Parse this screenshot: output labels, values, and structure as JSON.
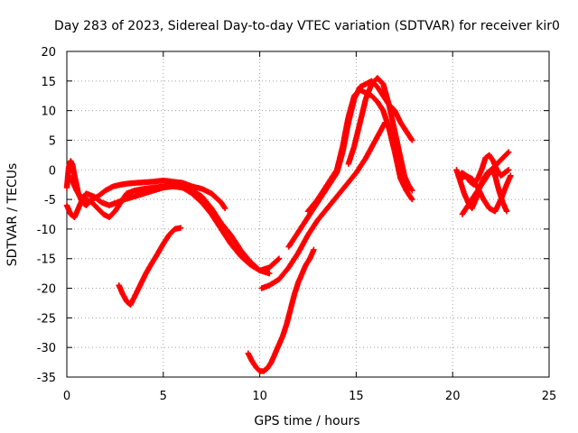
{
  "chart_data": {
    "type": "scatter",
    "title": "Day 283 of 2023, Sidereal Day-to-day VTEC variation (SDTVAR) for receiver kir0",
    "xlabel": "GPS time / hours",
    "ylabel": "SDTVAR / TECUs",
    "xlim": [
      0,
      25
    ],
    "ylim": [
      -35,
      20
    ],
    "xticks": [
      "0",
      "5",
      "10",
      "15",
      "20",
      "25"
    ],
    "xtick_values": [
      0,
      5,
      10,
      15,
      20,
      25
    ],
    "yticks": [
      "20",
      "15",
      "10",
      "5",
      "0",
      "-5",
      "-10",
      "-15",
      "-20",
      "-25",
      "-30",
      "-35"
    ],
    "ytick_values": [
      20,
      15,
      10,
      5,
      0,
      -5,
      -10,
      -15,
      -20,
      -25,
      -30,
      -35
    ],
    "grid": true,
    "marker": "plus",
    "color": "#ff0000",
    "series": [
      {
        "name": "arc-1",
        "x": [
          0.0,
          0.1,
          0.2,
          0.3,
          0.4,
          0.5,
          0.6,
          0.8,
          1.0,
          1.3,
          1.6,
          2.0,
          2.4,
          2.8,
          3.2,
          3.6,
          4.0,
          4.5,
          5.0,
          5.5,
          6.0,
          6.5,
          7.0,
          7.5,
          8.0,
          8.2
        ],
        "y": [
          -3,
          0.5,
          1.5,
          0.8,
          -1,
          -2.5,
          -4,
          -5.5,
          -6,
          -5,
          -4.5,
          -3.5,
          -2.8,
          -2.5,
          -2.3,
          -2.2,
          -2.1,
          -2,
          -1.8,
          -2,
          -2.2,
          -2.8,
          -3.2,
          -4,
          -5.5,
          -6.5
        ]
      },
      {
        "name": "arc-2",
        "x": [
          0.0,
          0.2,
          0.4,
          0.6,
          0.8,
          1.0,
          1.4,
          1.8,
          2.2,
          2.6,
          3.0,
          3.5,
          4.0,
          4.5,
          5.0,
          5.5,
          6.0,
          6.5,
          7.0,
          7.5,
          8.0,
          8.5,
          9.0,
          9.5,
          10.0,
          10.5
        ],
        "y": [
          -6,
          -7.5,
          -8,
          -6.5,
          -5,
          -4,
          -4.5,
          -5.5,
          -6,
          -5.5,
          -5,
          -4.5,
          -4,
          -3.5,
          -3,
          -2.8,
          -3,
          -3.5,
          -4.5,
          -6.5,
          -9,
          -11,
          -13.5,
          -15.5,
          -17,
          -17.5
        ]
      },
      {
        "name": "arc-3",
        "x": [
          0.1,
          0.3,
          0.5,
          0.7,
          1.0,
          1.3,
          1.6,
          1.9,
          2.2,
          2.5,
          2.8,
          3.1,
          3.5,
          4.0,
          4.5,
          5.0,
          5.5,
          6.0,
          6.5,
          7.0,
          7.5,
          8.0,
          8.5,
          9.0,
          9.5,
          10.0,
          10.5,
          11.0
        ],
        "y": [
          -1,
          -2,
          -3.5,
          -4.5,
          -5,
          -5.5,
          -6.5,
          -7.5,
          -8,
          -7,
          -5.5,
          -4,
          -3.5,
          -3.2,
          -3,
          -2.8,
          -2.5,
          -3,
          -4,
          -5.5,
          -7.5,
          -10,
          -12.5,
          -14.5,
          -16,
          -17,
          -16.5,
          -15
        ]
      },
      {
        "name": "arc-4",
        "x": [
          2.7,
          2.9,
          3.1,
          3.3,
          3.5,
          3.8,
          4.1,
          4.4,
          4.7,
          5.0,
          5.3,
          5.6,
          5.9
        ],
        "y": [
          -19.5,
          -21,
          -22.2,
          -22.8,
          -21.5,
          -19.5,
          -17.5,
          -15.8,
          -14.2,
          -12.5,
          -11,
          -10,
          -9.8
        ]
      },
      {
        "name": "arc-5",
        "x": [
          9.4,
          9.6,
          9.8,
          10.0,
          10.2,
          10.4,
          10.6,
          10.8,
          11.0,
          11.2,
          11.4,
          11.6,
          11.8,
          12.0,
          12.2,
          12.4,
          12.6,
          12.8
        ],
        "y": [
          -31,
          -32.3,
          -33.3,
          -34,
          -34,
          -33.5,
          -32.5,
          -31,
          -29.5,
          -28,
          -26,
          -23.5,
          -21,
          -19,
          -17.5,
          -16,
          -15,
          -13.5
        ]
      },
      {
        "name": "arc-6",
        "x": [
          10.1,
          10.5,
          11.0,
          11.5,
          12.0,
          12.5,
          13.0,
          13.5,
          14.0,
          14.5,
          15.0,
          15.5,
          16.0,
          16.5
        ],
        "y": [
          -20,
          -19.5,
          -18.5,
          -16.5,
          -14,
          -11,
          -8.5,
          -6.5,
          -4.5,
          -2.5,
          -0.5,
          2,
          5,
          8
        ]
      },
      {
        "name": "arc-7",
        "x": [
          11.5,
          12.0,
          12.5,
          13.0,
          13.5,
          14.0,
          14.3,
          14.6,
          14.9,
          15.2,
          15.5,
          15.8,
          16.1,
          16.4,
          16.7,
          17.0,
          17.3,
          17.6,
          17.9
        ],
        "y": [
          -13,
          -10.5,
          -8,
          -5.5,
          -3,
          -0.5,
          3,
          8,
          12,
          14,
          14.5,
          15,
          14,
          12.5,
          11,
          10,
          8,
          6.5,
          5
        ]
      },
      {
        "name": "arc-8",
        "x": [
          12.5,
          13.0,
          13.5,
          14.0,
          14.3,
          14.6,
          14.9,
          15.2,
          15.5,
          15.8,
          16.1,
          16.4,
          16.7,
          17.0,
          17.3,
          17.6,
          17.9
        ],
        "y": [
          -7,
          -5,
          -2.5,
          0,
          4,
          9,
          12.5,
          13.5,
          13,
          12.5,
          11.5,
          10,
          7,
          3,
          -1.5,
          -3.5,
          -5
        ]
      },
      {
        "name": "arc-9",
        "x": [
          14.6,
          14.9,
          15.2,
          15.5,
          15.8,
          16.1,
          16.4,
          16.7,
          17.0,
          17.3,
          17.5,
          17.7,
          17.9
        ],
        "y": [
          1,
          4,
          8,
          12,
          14.5,
          15.5,
          14.5,
          11,
          6.5,
          2,
          -1,
          -2.5,
          -3.5
        ]
      },
      {
        "name": "arc-10",
        "x": [
          20.2,
          20.4,
          20.6,
          20.8,
          21.0,
          21.2,
          21.4,
          21.6,
          21.8,
          22.0,
          22.2,
          22.4,
          22.6,
          22.8
        ],
        "y": [
          0,
          -2,
          -4,
          -5.5,
          -6.5,
          -5,
          -3,
          -1.5,
          -0.5,
          0,
          -1,
          -3.5,
          -5.5,
          -7
        ]
      },
      {
        "name": "arc-11",
        "x": [
          20.3,
          20.5,
          20.7,
          20.9,
          21.1,
          21.3,
          21.5,
          21.7,
          21.9,
          22.1,
          22.3,
          22.5,
          22.7,
          22.9
        ],
        "y": [
          -1,
          -0.5,
          -1,
          -2,
          -2.5,
          -1.5,
          0,
          2,
          2.5,
          1.5,
          0,
          -1,
          -0.5,
          0
        ]
      },
      {
        "name": "arc-12",
        "x": [
          20.5,
          20.8,
          21.1,
          21.4,
          21.7,
          22.0,
          22.3,
          22.6,
          22.9
        ],
        "y": [
          -7.5,
          -6,
          -4.5,
          -3,
          -1.5,
          0,
          1,
          2,
          3
        ]
      },
      {
        "name": "arc-13",
        "x": [
          20.4,
          20.7,
          21.0,
          21.3,
          21.6,
          21.9,
          22.2,
          22.5,
          22.8,
          23.0
        ],
        "y": [
          -1.5,
          -1,
          -1.5,
          -3,
          -5,
          -6.5,
          -7,
          -5,
          -2.5,
          -1
        ]
      }
    ]
  }
}
